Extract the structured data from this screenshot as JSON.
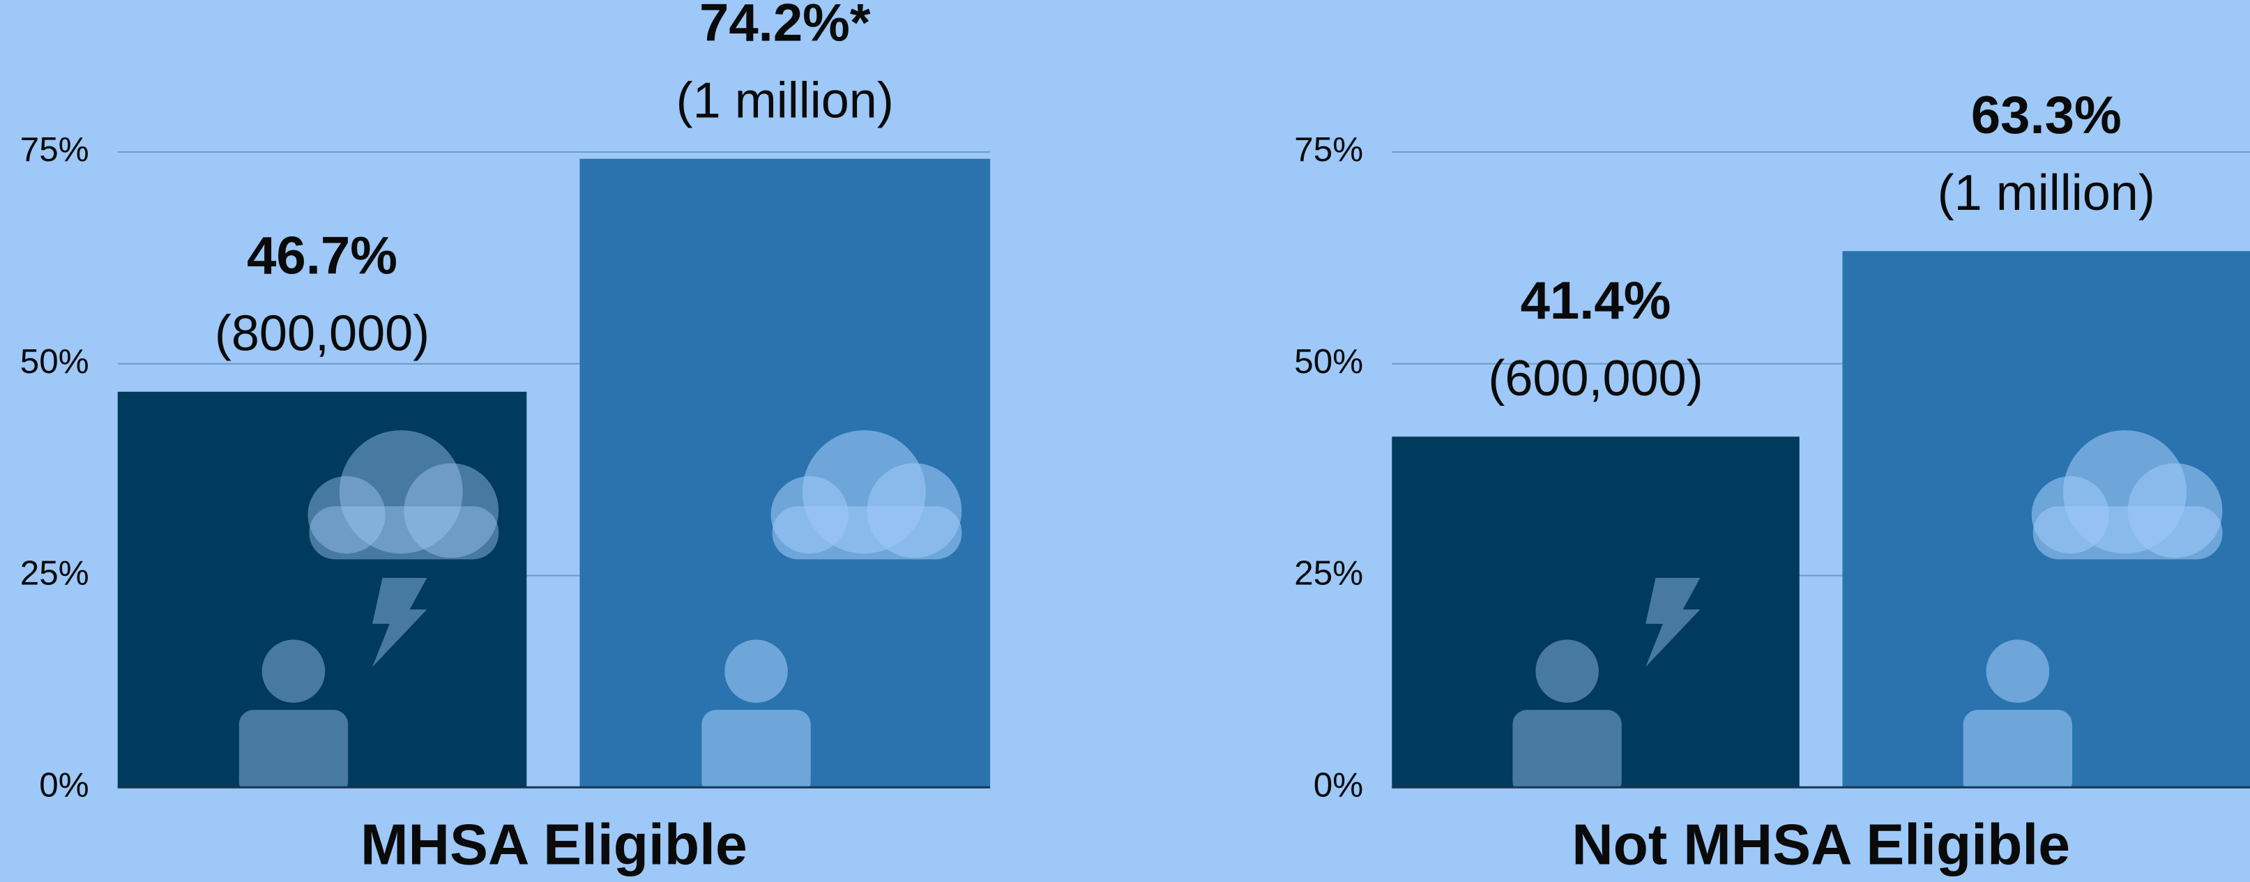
{
  "chart_data": [
    {
      "type": "bar",
      "x_label": "MHSA Eligible",
      "categories": [
        null,
        null
      ],
      "values": [
        46.7,
        74.2
      ],
      "value_labels": [
        "46.7%",
        "74.2%*"
      ],
      "count_labels": [
        "(800,000)",
        "(1 million)"
      ],
      "colors": [
        "#003a5c",
        "#2a73ae"
      ],
      "ylim": [
        0,
        75
      ],
      "yticks": [
        {
          "value": 0,
          "label": "0%"
        },
        {
          "value": 25,
          "label": "25%"
        },
        {
          "value": 50,
          "label": "50%"
        },
        {
          "value": 75,
          "label": "75%"
        }
      ],
      "grid": true
    },
    {
      "type": "bar",
      "x_label": "Not MHSA Eligible",
      "categories": [
        null,
        null
      ],
      "values": [
        41.4,
        63.3
      ],
      "value_labels": [
        "41.4%",
        "63.3%"
      ],
      "count_labels": [
        "(600,000)",
        "(1 million)"
      ],
      "colors": [
        "#003a5c",
        "#2a73ae"
      ],
      "ylim": [
        0,
        75
      ],
      "yticks": [
        {
          "value": 0,
          "label": "0%"
        },
        {
          "value": 25,
          "label": "25%"
        },
        {
          "value": 50,
          "label": "50%"
        },
        {
          "value": 75,
          "label": "75%"
        }
      ],
      "grid": true
    }
  ]
}
